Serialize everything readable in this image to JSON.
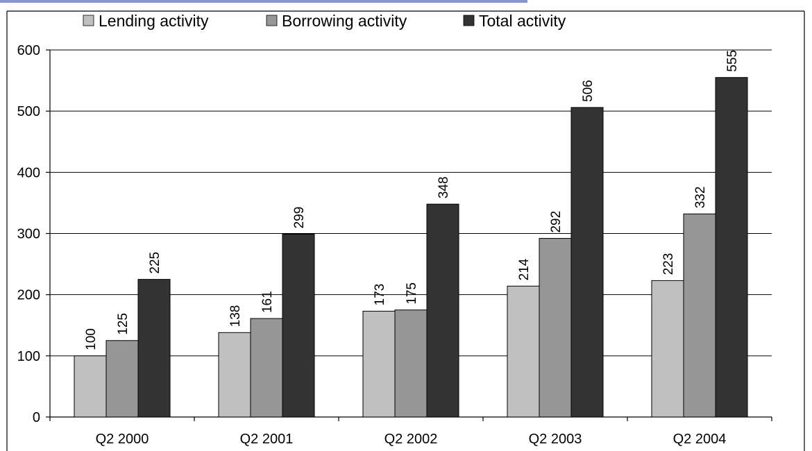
{
  "colors": {
    "lending": "#c0c0c0",
    "borrowing": "#969696",
    "total": "#333333",
    "header_text": "#1f3fa0"
  },
  "chart_data": {
    "type": "bar",
    "categories": [
      "Q2 2000",
      "Q2 2001",
      "Q2 2002",
      "Q2 2003",
      "Q2 2004"
    ],
    "series": [
      {
        "name": "Lending activity",
        "values": [
          100,
          138,
          173,
          214,
          223
        ],
        "color": "#c0c0c0"
      },
      {
        "name": "Borrowing activity",
        "values": [
          125,
          161,
          175,
          292,
          332
        ],
        "color": "#969696"
      },
      {
        "name": "Total activity",
        "values": [
          225,
          299,
          348,
          506,
          555
        ],
        "color": "#333333"
      }
    ],
    "ylim": [
      0,
      600
    ],
    "yticks": [
      0,
      100,
      200,
      300,
      400,
      500,
      600
    ],
    "grid": true,
    "legend_position": "top",
    "title": "",
    "xlabel": "",
    "ylabel": ""
  }
}
